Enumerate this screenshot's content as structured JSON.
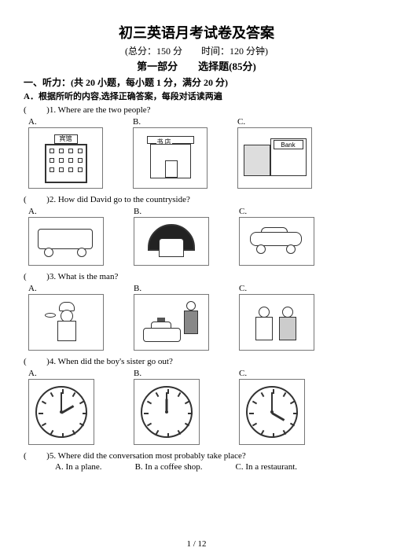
{
  "header": {
    "title": "初三英语月考试卷及答案",
    "score_time": "(总分：150 分　　时间：120 分钟)",
    "part": "第一部分　　选择题(85分)"
  },
  "section1": {
    "heading": "一、听力：(共 20 小题，每小题 1 分，满分 20 分)",
    "instruction": "A．根据所听的内容,选择正确答案，每段对话读两遍"
  },
  "q1": {
    "prefix": "(",
    "num": ")1.",
    "text": "Where are the two people?",
    "opts": {
      "a": "A.",
      "b": "B.",
      "c": "C."
    },
    "labels": {
      "hotel": "宾馆",
      "bookstore": "书 店",
      "bank": "Bank"
    }
  },
  "q2": {
    "prefix": "(",
    "num": ")2.",
    "text": "How did David go to the countryside?",
    "opts": {
      "a": "A.",
      "b": "B.",
      "c": "C."
    }
  },
  "q3": {
    "prefix": "(",
    "num": ")3.",
    "text": "What is the man?",
    "opts": {
      "a": "A.",
      "b": "B.",
      "c": "C."
    }
  },
  "q4": {
    "prefix": "(",
    "num": ")4.",
    "text": "When did the boy's sister go out?",
    "opts": {
      "a": "A.",
      "b": "B.",
      "c": "C."
    },
    "clocks": {
      "a": {
        "hour_deg": -30,
        "minute_deg": -90
      },
      "b": {
        "hour_deg": -90,
        "minute_deg": -90
      },
      "c": {
        "hour_deg": 30,
        "minute_deg": -90
      }
    }
  },
  "q5": {
    "prefix": "(",
    "num": ")5.",
    "text": "Where did the conversation most probably take place?",
    "a": "A. In a plane.",
    "b": "B. In a coffee shop.",
    "c": "C. In a restaurant."
  },
  "footer": {
    "page": "1 / 12"
  },
  "colors": {
    "text": "#000000",
    "border": "#777777",
    "bg": "#ffffff"
  }
}
